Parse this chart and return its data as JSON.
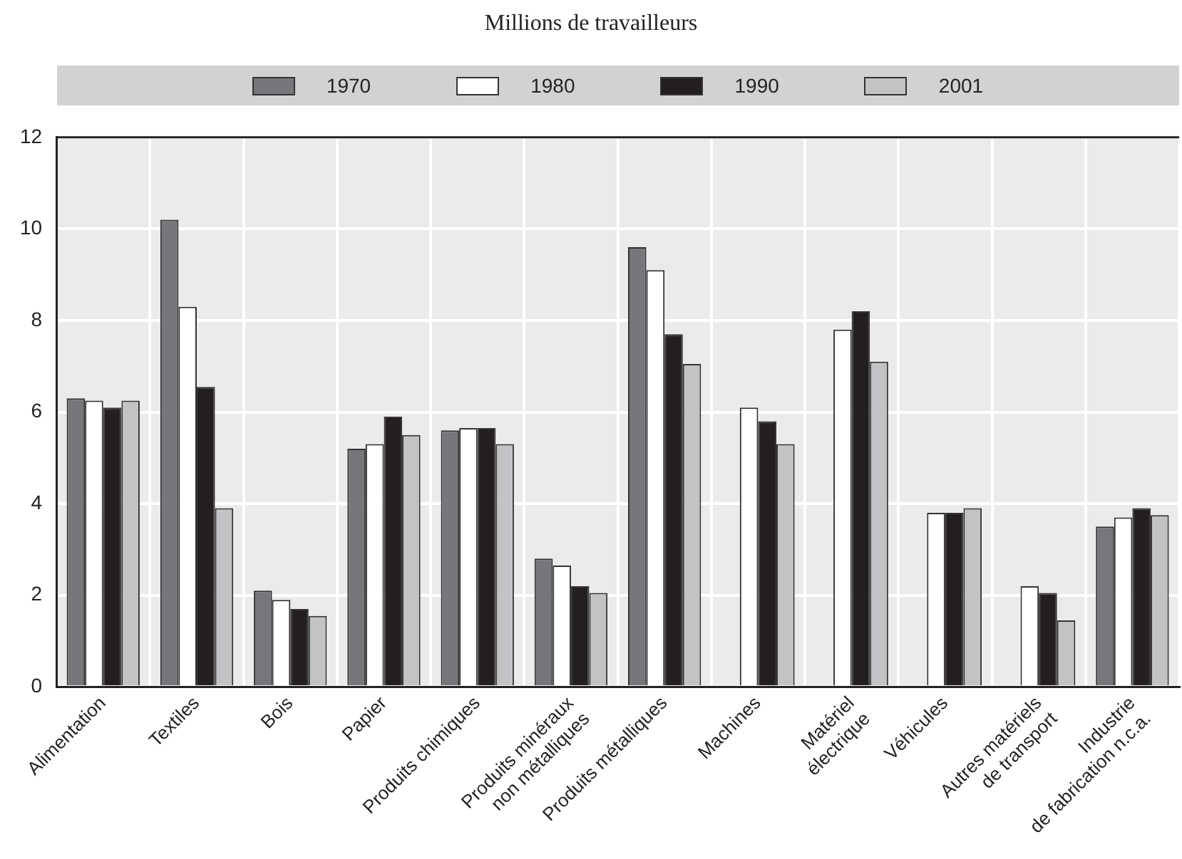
{
  "chart_data": {
    "type": "bar",
    "title": "Millions de travailleurs",
    "categories": [
      "Alimentation",
      "Textiles",
      "Bois",
      "Papier",
      "Produits chimiques",
      "Produits minéraux\nnon métalliques",
      "Produits métalliques",
      "Machines",
      "Matériel\nélectrique",
      "Véhicules",
      "Autres matériels\nde transport",
      "Industrie\nde fabrication n.c.a."
    ],
    "series": [
      {
        "name": "1970",
        "color": "#77777b",
        "values": [
          6.3,
          10.2,
          2.1,
          5.2,
          5.6,
          2.8,
          9.6,
          null,
          null,
          null,
          null,
          3.5
        ]
      },
      {
        "name": "1980",
        "color": "#ffffff",
        "values": [
          6.25,
          8.3,
          1.9,
          5.3,
          5.65,
          2.65,
          9.1,
          6.1,
          7.8,
          3.8,
          2.2,
          3.7
        ]
      },
      {
        "name": "1990",
        "color": "#231f20",
        "values": [
          6.1,
          6.55,
          1.7,
          5.9,
          5.65,
          2.2,
          7.7,
          5.8,
          8.2,
          3.8,
          2.05,
          3.9
        ]
      },
      {
        "name": "2001",
        "color": "#c2c3c5",
        "values": [
          6.25,
          3.9,
          1.55,
          5.5,
          5.3,
          2.05,
          7.05,
          5.3,
          7.1,
          3.9,
          1.45,
          3.75
        ]
      }
    ],
    "ylim": [
      0,
      12
    ],
    "yticks": [
      0,
      2,
      4,
      6,
      8,
      10,
      12
    ],
    "grid": true,
    "legend": "top"
  }
}
